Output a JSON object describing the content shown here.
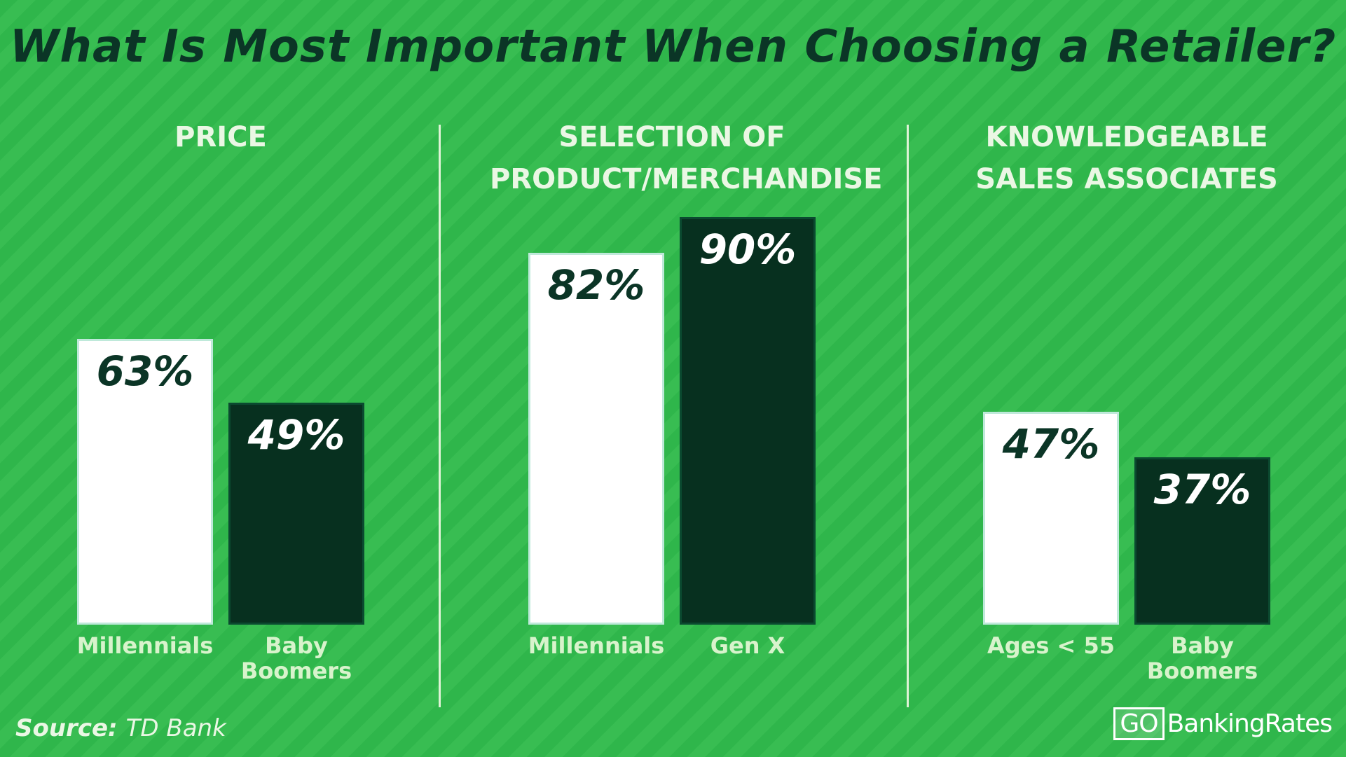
{
  "title": "What Is Most Important When Choosing a Retailer?",
  "chart_data": [
    {
      "type": "bar",
      "title": "PRICE",
      "categories": [
        "Millennials",
        "Baby Boomers"
      ],
      "values": [
        63,
        49
      ],
      "value_labels": [
        "63%",
        "49%"
      ],
      "colors": [
        "#ffffff",
        "#07301f"
      ]
    },
    {
      "type": "bar",
      "title": "SELECTION OF PRODUCT/MERCHANDISE",
      "categories": [
        "Millennials",
        "Gen X"
      ],
      "values": [
        82,
        90
      ],
      "value_labels": [
        "82%",
        "90%"
      ],
      "colors": [
        "#ffffff",
        "#07301f"
      ]
    },
    {
      "type": "bar",
      "title": "KNOWLEDGEABLE SALES ASSOCIATES",
      "categories": [
        "Ages < 55",
        "Baby Boomers"
      ],
      "values": [
        47,
        37
      ],
      "value_labels": [
        "47%",
        "37%"
      ],
      "colors": [
        "#ffffff",
        "#07301f"
      ]
    }
  ],
  "source_label": "Source:",
  "source": "TD Bank",
  "logo": {
    "mark": "GO",
    "name": "BankingRates"
  }
}
